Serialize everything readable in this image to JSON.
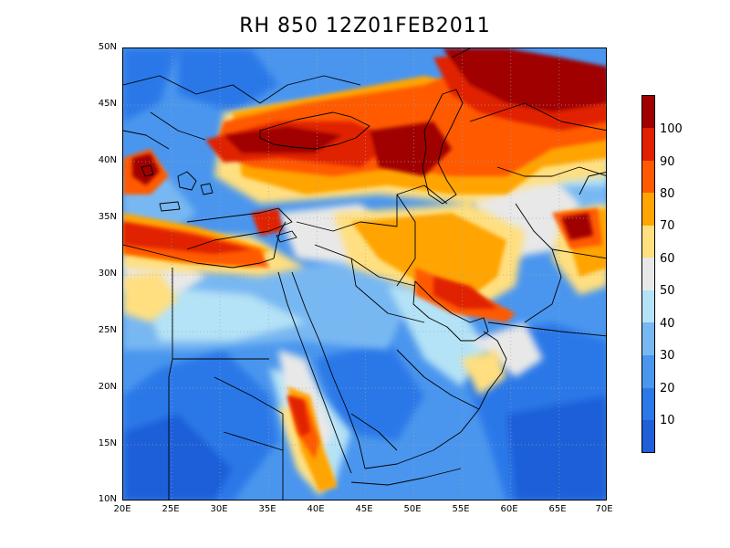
{
  "title": "RH 850  12Z01FEB2011",
  "y_ticks": [
    "50N",
    "45N",
    "40N",
    "35N",
    "30N",
    "25N",
    "20N",
    "15N",
    "10N"
  ],
  "x_ticks": [
    "20E",
    "25E",
    "30E",
    "35E",
    "40E",
    "45E",
    "50E",
    "55E",
    "60E",
    "65E",
    "70E"
  ],
  "colorbar": {
    "labels": [
      "100",
      "90",
      "80",
      "70",
      "60",
      "50",
      "40",
      "30",
      "20",
      "10"
    ],
    "colors": [
      "#1f5fd8",
      "#2b78e8",
      "#4a96ee",
      "#78b8f2",
      "#b4e2f6",
      "#e8e8e8",
      "#ffdf80",
      "#ffa400",
      "#ff5a00",
      "#e02000",
      "#a00000"
    ]
  }
}
